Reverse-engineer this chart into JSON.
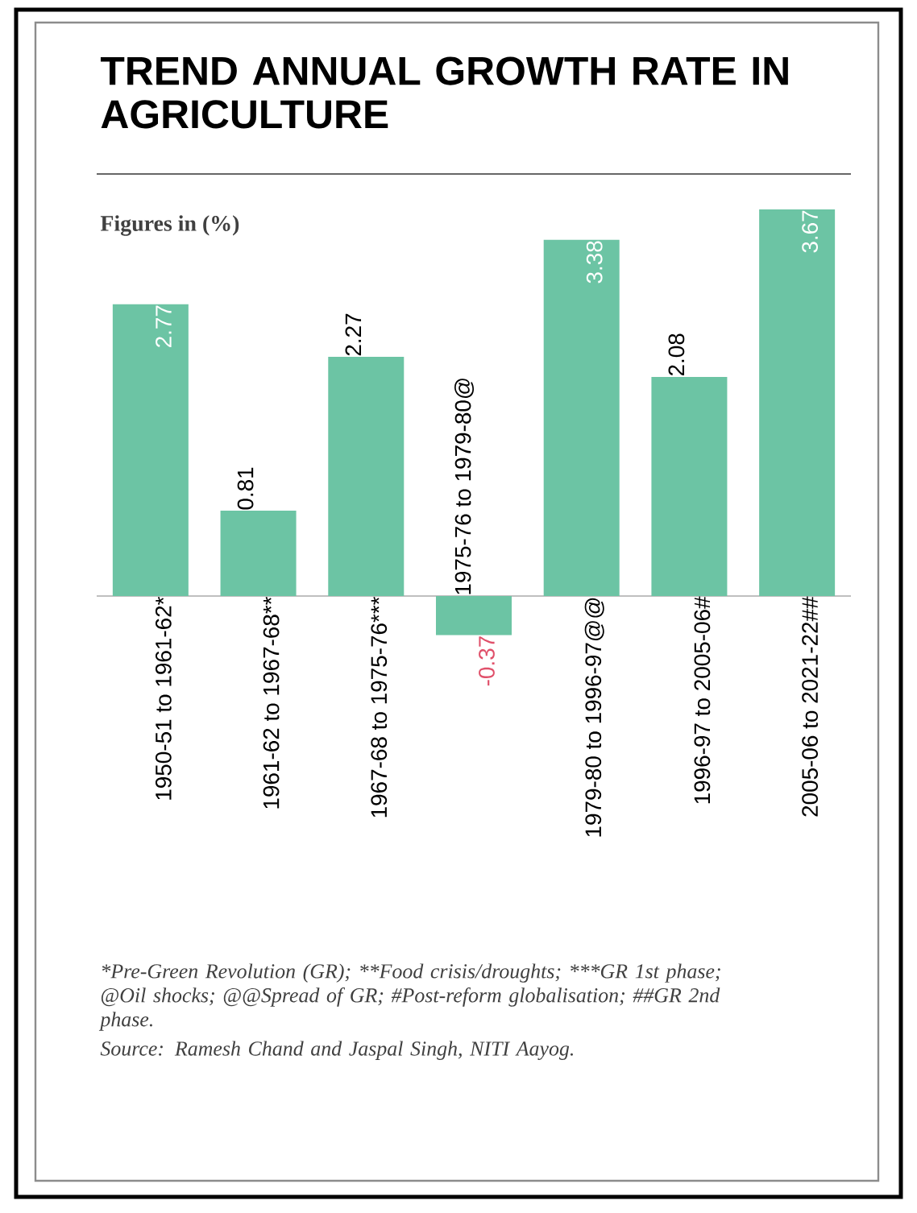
{
  "chart_data": {
    "type": "bar",
    "title": "TREND ANNUAL GROWTH RATE IN AGRICULTURE",
    "subtitle": "Figures in (%)",
    "categories": [
      "1950-51 to 1961-62*",
      "1961-62 to 1967-68**",
      "1967-68 to 1975-76***",
      "1975-76 to 1979-80@",
      "1979-80 to 1996-97@@",
      "1996-97 to 2005-06#",
      "2005-06 to 2021-22##"
    ],
    "values": [
      2.77,
      0.81,
      2.27,
      -0.37,
      3.38,
      2.08,
      3.67
    ],
    "color": "#6cc4a4",
    "data_labels": true,
    "annotations": [
      "*Pre-Green Revolution (GR);",
      "**Food crisis/droughts;",
      "***GR 1st phase;",
      "@Oil shocks; @@Spread of GR; #Post-reform globalisation; ##GR 2nd phase.",
      "Source: Ramesh Chand and Jaspal Singh, NITI Aayog."
    ]
  }
}
